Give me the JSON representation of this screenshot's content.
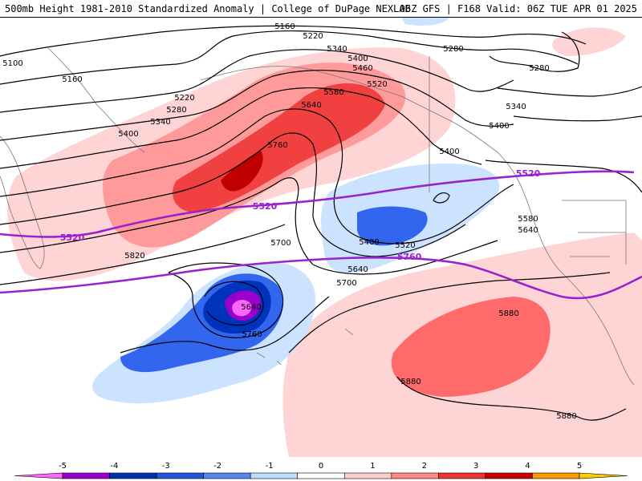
{
  "header": {
    "left": "500mb Height 1981-2010 Standardized Anomaly | College of DuPage NEXLAB",
    "right": "06Z GFS | F168 Valid: 06Z TUE APR 01 2025"
  },
  "contour_labels": [
    "5100",
    "5160",
    "5160",
    "5220",
    "5220",
    "5280",
    "5280",
    "5280",
    "5340",
    "5340",
    "5340",
    "5400",
    "5400",
    "5400",
    "5400",
    "5400",
    "5460",
    "5520",
    "5520",
    "5580",
    "5580",
    "5640",
    "5640",
    "5640",
    "5640",
    "5700",
    "5700",
    "5760",
    "5760",
    "5820",
    "5880",
    "5880",
    "5880"
  ],
  "highlight_labels": [
    "5520",
    "5520",
    "5520",
    "5760"
  ],
  "colorbar": {
    "ticks": [
      "-5",
      "-4",
      "-3",
      "-2",
      "-1",
      "0",
      "1",
      "2",
      "3",
      "4",
      "5"
    ],
    "colors": [
      "#ff66ff",
      "#9900cc",
      "#0033aa",
      "#2255dd",
      "#5588ee",
      "#bbddff",
      "#ffffff",
      "#ffcccc",
      "#ff8888",
      "#ee3333",
      "#cc0000",
      "#ff9900",
      "#ffcc00"
    ]
  }
}
